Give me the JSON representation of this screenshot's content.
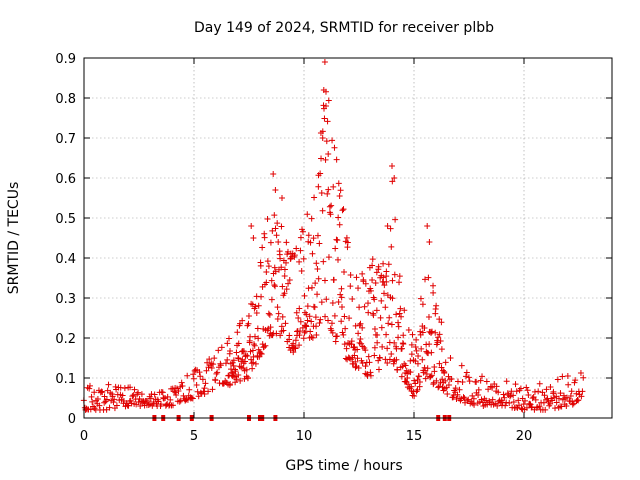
{
  "chart_data": {
    "type": "scatter",
    "title": "Day 149 of 2024, SRMTID for receiver plbb",
    "xlabel": "GPS time / hours",
    "ylabel": "SRMTID / TECUs",
    "xlim": [
      0,
      24
    ],
    "ylim": [
      0,
      0.9
    ],
    "xticks": [
      0,
      5,
      10,
      15,
      20
    ],
    "yticks": [
      0,
      0.1,
      0.2,
      0.3,
      0.4,
      0.5,
      0.6,
      0.7,
      0.8,
      0.9
    ],
    "grid": true,
    "marker": "+",
    "series_color": "#e00000",
    "envelope": {
      "description": "approximate envelope of the scatter cloud (x hours, low/high TECU)",
      "points": [
        {
          "x": 0.0,
          "lo": 0.02,
          "hi": 0.08
        },
        {
          "x": 1.0,
          "lo": 0.02,
          "hi": 0.09
        },
        {
          "x": 2.0,
          "lo": 0.03,
          "hi": 0.08
        },
        {
          "x": 3.0,
          "lo": 0.03,
          "hi": 0.06
        },
        {
          "x": 4.0,
          "lo": 0.03,
          "hi": 0.08
        },
        {
          "x": 5.0,
          "lo": 0.05,
          "hi": 0.12
        },
        {
          "x": 6.0,
          "lo": 0.07,
          "hi": 0.17
        },
        {
          "x": 7.0,
          "lo": 0.09,
          "hi": 0.23
        },
        {
          "x": 7.5,
          "lo": 0.1,
          "hi": 0.3
        },
        {
          "x": 8.0,
          "lo": 0.15,
          "hi": 0.45
        },
        {
          "x": 8.5,
          "lo": 0.2,
          "hi": 0.55
        },
        {
          "x": 9.0,
          "lo": 0.2,
          "hi": 0.5
        },
        {
          "x": 9.5,
          "lo": 0.16,
          "hi": 0.42
        },
        {
          "x": 10.0,
          "lo": 0.2,
          "hi": 0.5
        },
        {
          "x": 10.5,
          "lo": 0.2,
          "hi": 0.6
        },
        {
          "x": 11.0,
          "lo": 0.25,
          "hi": 0.85
        },
        {
          "x": 11.5,
          "lo": 0.18,
          "hi": 0.65
        },
        {
          "x": 12.0,
          "lo": 0.14,
          "hi": 0.45
        },
        {
          "x": 12.5,
          "lo": 0.12,
          "hi": 0.35
        },
        {
          "x": 13.0,
          "lo": 0.1,
          "hi": 0.4
        },
        {
          "x": 13.5,
          "lo": 0.12,
          "hi": 0.45
        },
        {
          "x": 14.0,
          "lo": 0.13,
          "hi": 0.6
        },
        {
          "x": 14.5,
          "lo": 0.1,
          "hi": 0.3
        },
        {
          "x": 15.0,
          "lo": 0.05,
          "hi": 0.2
        },
        {
          "x": 15.5,
          "lo": 0.1,
          "hi": 0.45
        },
        {
          "x": 16.0,
          "lo": 0.08,
          "hi": 0.3
        },
        {
          "x": 16.5,
          "lo": 0.06,
          "hi": 0.18
        },
        {
          "x": 17.0,
          "lo": 0.04,
          "hi": 0.14
        },
        {
          "x": 18.0,
          "lo": 0.03,
          "hi": 0.11
        },
        {
          "x": 19.0,
          "lo": 0.03,
          "hi": 0.1
        },
        {
          "x": 20.0,
          "lo": 0.02,
          "hi": 0.08
        },
        {
          "x": 21.0,
          "lo": 0.02,
          "hi": 0.09
        },
        {
          "x": 22.0,
          "lo": 0.03,
          "hi": 0.11
        },
        {
          "x": 22.7,
          "lo": 0.04,
          "hi": 0.12
        }
      ]
    },
    "highlights": [
      {
        "x": 10.95,
        "y": 0.89
      },
      {
        "x": 10.9,
        "y": 0.82
      },
      {
        "x": 11.0,
        "y": 0.78
      },
      {
        "x": 10.85,
        "y": 0.7
      },
      {
        "x": 11.1,
        "y": 0.66
      },
      {
        "x": 14.0,
        "y": 0.63
      },
      {
        "x": 14.1,
        "y": 0.6
      },
      {
        "x": 8.6,
        "y": 0.61
      },
      {
        "x": 8.7,
        "y": 0.57
      },
      {
        "x": 9.0,
        "y": 0.55
      },
      {
        "x": 15.6,
        "y": 0.48
      },
      {
        "x": 15.7,
        "y": 0.44
      },
      {
        "x": 7.6,
        "y": 0.48
      },
      {
        "x": 7.7,
        "y": 0.45
      },
      {
        "x": 13.8,
        "y": 0.48
      }
    ],
    "zero_markers_x": [
      3.2,
      3.6,
      4.3,
      4.9,
      5.8,
      7.5,
      8.0,
      8.1,
      8.7,
      16.1,
      16.4,
      16.6
    ]
  }
}
